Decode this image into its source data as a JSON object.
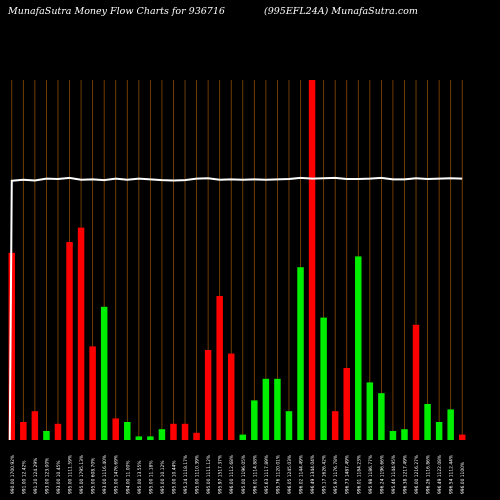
{
  "header": {
    "left_title": "MunafaSutra  Money Flow  Charts for 936716",
    "right_title": "(995EFL24A) MunafaSutra.com"
  },
  "colors": {
    "background": "#000000",
    "gridline": "#8a4a00",
    "up_bar": "#00ee00",
    "down_bar": "#ff0000",
    "price_line": "#ffffff",
    "label_text": "#ffffff"
  },
  "chart_data": {
    "type": "bar",
    "title": "MunafaSutra  Money Flow  Charts for 936716",
    "subtitle": "(995EFL24A) MunafaSutra.com",
    "xlabel": "",
    "ylabel": "",
    "grid": true,
    "categories": [
      "990.00 1700.92%",
      "991.00 12.42%",
      "991.20 124.29%",
      "993.00 123.00%",
      "993.00 10.45%",
      "995.00 1111.59%",
      "995.00 1795.13%",
      "995.00 608.70%",
      "993.00 1116.40%",
      "995.00 1476.69%",
      "994.00 11.00%",
      "995.00 13.55%",
      "995.00 11.18%",
      "995.00 10.12%",
      "995.00 10.44%",
      "995.24 1118.17%",
      "995.00 1110.39%",
      "995.00 1111.12%",
      "995.97 1517.37%",
      "996.00 1112.68%",
      "995.00 1196.05%",
      "996.01 1114.88%",
      "995.63 1117.89%",
      "995.76 1120.01%",
      "996.05 1245.03%",
      "996.02 1144.49%",
      "996.49 1344.04%",
      "995.17 1626.42%",
      "995.97 1176.78%",
      "996.73 1487.49%",
      "996.01 1184.23%",
      "995.98 1186.77%",
      "996.24 1196.66%",
      "995.46 1144.95%",
      "996.38 1217.49%",
      "996.00 1216.27%",
      "996.26 1116.86%",
      "996.49 1122.08%",
      "996.54 1112.44%",
      "996.00 1100%"
    ],
    "values": [
      52,
      5,
      8,
      2.5,
      4.5,
      55,
      59,
      26,
      37,
      6,
      5,
      1,
      1,
      3,
      4.5,
      4.5,
      2,
      25,
      40,
      24,
      1.5,
      11,
      17,
      17,
      8,
      48,
      100,
      34,
      8,
      20,
      51,
      16,
      13,
      2.5,
      3,
      32,
      10,
      5,
      8.5,
      1.5
    ],
    "directions": [
      "down",
      "down",
      "down",
      "up",
      "down",
      "down",
      "down",
      "down",
      "up",
      "down",
      "up",
      "up",
      "up",
      "up",
      "down",
      "down",
      "down",
      "down",
      "down",
      "down",
      "up",
      "up",
      "up",
      "up",
      "up",
      "up",
      "down",
      "up",
      "down",
      "down",
      "up",
      "up",
      "up",
      "up",
      "up",
      "down",
      "up",
      "up",
      "up",
      "down"
    ],
    "price_line": [
      72,
      72.3,
      72.1,
      72.6,
      72.5,
      72.8,
      72.3,
      72.4,
      72.2,
      72.6,
      72.3,
      72.6,
      72.4,
      72.2,
      72.1,
      72.2,
      72.6,
      72.7,
      72.3,
      72.4,
      72.3,
      72.4,
      72.3,
      72.4,
      72.5,
      72.8,
      72.6,
      72.7,
      72.8,
      72.5,
      72.5,
      72.6,
      72.8,
      72.4,
      72.4,
      72.7,
      72.5,
      72.6,
      72.7,
      72.6
    ],
    "ylim": [
      0,
      100
    ]
  }
}
